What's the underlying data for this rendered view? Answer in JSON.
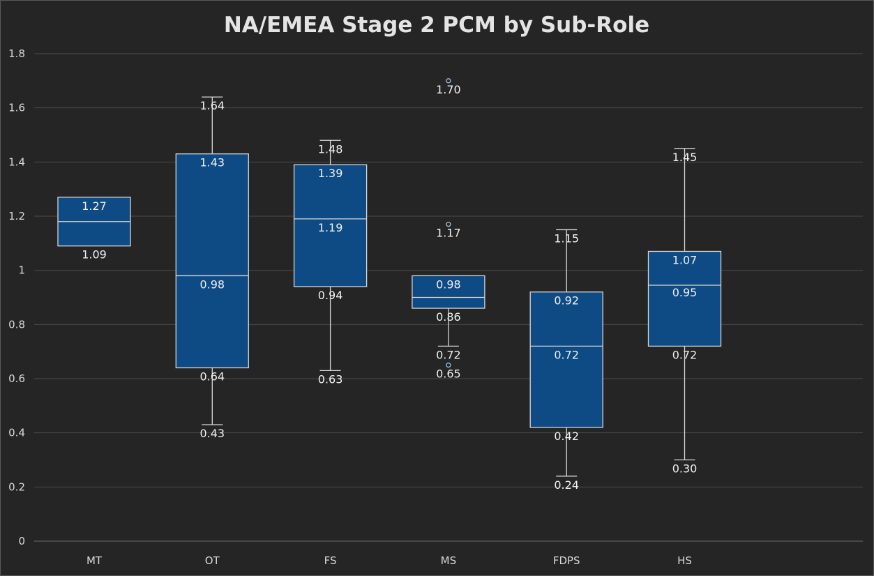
{
  "chart_data": {
    "type": "box",
    "title": "NA/EMEA Stage 2 PCM by Sub-Role",
    "xlabel": "",
    "ylabel": "",
    "ylim": [
      0,
      1.8
    ],
    "yticks": [
      {
        "value": 0,
        "label": "0"
      },
      {
        "value": 0.2,
        "label": "0.2"
      },
      {
        "value": 0.4,
        "label": "0.4"
      },
      {
        "value": 0.6,
        "label": "0.6"
      },
      {
        "value": 0.8,
        "label": "0.8"
      },
      {
        "value": 1.0,
        "label": "1"
      },
      {
        "value": 1.2,
        "label": "1.2"
      },
      {
        "value": 1.4,
        "label": "1.4"
      },
      {
        "value": 1.6,
        "label": "1.6"
      },
      {
        "value": 1.8,
        "label": "1.8"
      }
    ],
    "grid": true,
    "legend": "none",
    "categories": [
      "MT",
      "OT",
      "FS",
      "MS",
      "FDPS",
      "HS"
    ],
    "boxes": [
      {
        "category": "MT",
        "min": null,
        "q1": 1.09,
        "median": 1.18,
        "q3": 1.27,
        "max": null,
        "outliers": [],
        "labels": [
          {
            "value": 1.27,
            "text": "1.27"
          },
          {
            "value": 1.09,
            "text": "1.09"
          }
        ]
      },
      {
        "category": "OT",
        "min": 0.43,
        "q1": 0.64,
        "median": 0.98,
        "q3": 1.43,
        "max": 1.64,
        "outliers": [],
        "labels": [
          {
            "value": 1.64,
            "text": "1.64"
          },
          {
            "value": 1.43,
            "text": "1.43"
          },
          {
            "value": 0.98,
            "text": "0.98"
          },
          {
            "value": 0.64,
            "text": "0.64"
          },
          {
            "value": 0.43,
            "text": "0.43"
          }
        ]
      },
      {
        "category": "FS",
        "min": 0.63,
        "q1": 0.94,
        "median": 1.19,
        "q3": 1.39,
        "max": 1.48,
        "outliers": [],
        "labels": [
          {
            "value": 1.48,
            "text": "1.48"
          },
          {
            "value": 1.39,
            "text": "1.39"
          },
          {
            "value": 1.19,
            "text": "1.19"
          },
          {
            "value": 0.94,
            "text": "0.94"
          },
          {
            "value": 0.63,
            "text": "0.63"
          }
        ]
      },
      {
        "category": "MS",
        "min": 0.72,
        "q1": 0.86,
        "median": 0.9,
        "q3": 0.98,
        "max": 0.98,
        "outliers": [
          1.7,
          1.17,
          0.65
        ],
        "labels": [
          {
            "value": 1.7,
            "text": "1.70"
          },
          {
            "value": 1.17,
            "text": "1.17"
          },
          {
            "value": 0.98,
            "text": "0.98"
          },
          {
            "value": 0.86,
            "text": "0.86"
          },
          {
            "value": 0.72,
            "text": "0.72"
          },
          {
            "value": 0.65,
            "text": "0.65"
          }
        ]
      },
      {
        "category": "FDPS",
        "min": 0.24,
        "q1": 0.42,
        "median": 0.72,
        "q3": 0.92,
        "max": 1.15,
        "outliers": [],
        "labels": [
          {
            "value": 1.15,
            "text": "1.15"
          },
          {
            "value": 0.92,
            "text": "0.92"
          },
          {
            "value": 0.72,
            "text": "0.72"
          },
          {
            "value": 0.42,
            "text": "0.42"
          },
          {
            "value": 0.24,
            "text": "0.24"
          }
        ]
      },
      {
        "category": "HS",
        "min": 0.3,
        "q1": 0.72,
        "median": 0.945,
        "q3": 1.07,
        "max": 1.45,
        "outliers": [],
        "labels": [
          {
            "value": 1.45,
            "text": "1.45"
          },
          {
            "value": 1.07,
            "text": "1.07"
          },
          {
            "value": 0.95,
            "text": "0.95"
          },
          {
            "value": 0.72,
            "text": "0.72"
          },
          {
            "value": 0.3,
            "text": "0.30"
          }
        ]
      }
    ],
    "colors": {
      "background": "#252525",
      "box_fill": "#0e4a84",
      "box_stroke": "#d8d8d8",
      "whisker": "#d8d8d8",
      "gridline": "#4a4a4a",
      "outlier_stroke": "#9cc3e6",
      "text": "#e4e4e4"
    }
  }
}
